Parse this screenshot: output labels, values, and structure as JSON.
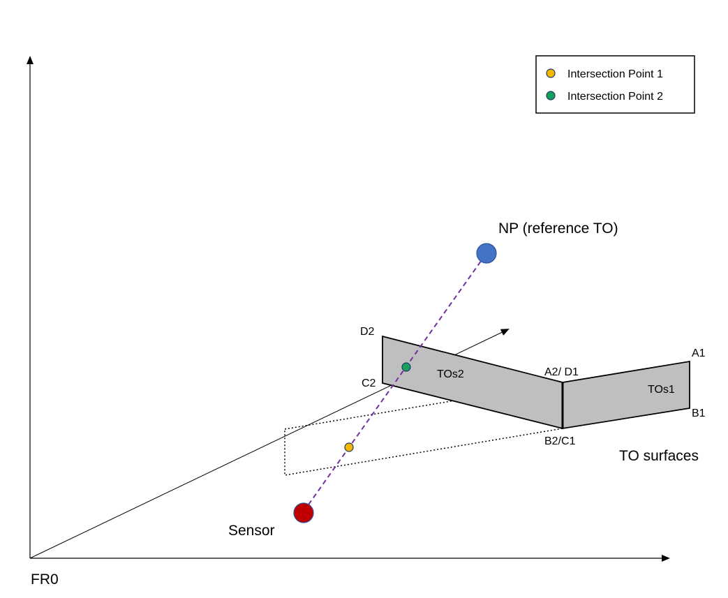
{
  "labels": {
    "origin": "FR0",
    "sensor": "Sensor",
    "np": "NP (reference TO)",
    "to_surfaces": "TO surfaces",
    "tos1": "TOs1",
    "tos2": "TOs2",
    "a1": "A1",
    "b1": "B1",
    "a2d1": "A2/ D1",
    "b2c1": "B2/C1",
    "c2": "C2",
    "d2": "D2"
  },
  "legend": {
    "items": [
      {
        "label": "Intersection Point 1",
        "color": "#F5B800"
      },
      {
        "label": "Intersection Point 2",
        "color": "#16A05D"
      }
    ]
  },
  "colors": {
    "sensor": "#C00000",
    "np": "#4472C4",
    "surface_fill": "#BFBFBF",
    "ray": "#7030A0"
  }
}
